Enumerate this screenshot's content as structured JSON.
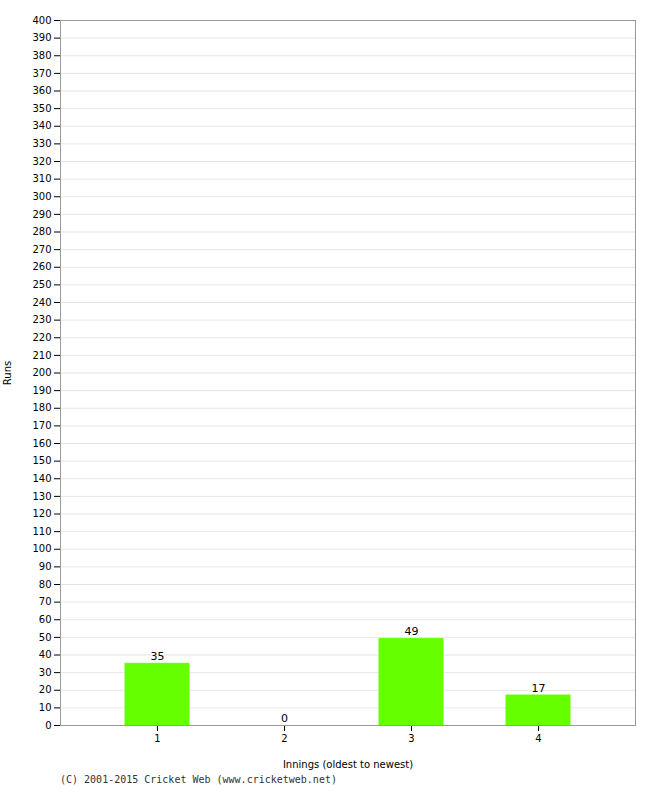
{
  "chart_data": {
    "type": "bar",
    "categories": [
      "1",
      "2",
      "3",
      "4"
    ],
    "values": [
      35,
      0,
      49,
      17
    ],
    "color": "#66ff00",
    "xlabel": "Innings (oldest to newest)",
    "ylabel": "Runs",
    "ylim": [
      0,
      400
    ],
    "yticks": [
      0,
      10,
      20,
      30,
      40,
      50,
      60,
      70,
      80,
      90,
      100,
      110,
      120,
      130,
      140,
      150,
      160,
      170,
      180,
      190,
      200,
      210,
      220,
      230,
      240,
      250,
      260,
      270,
      280,
      290,
      300,
      310,
      320,
      330,
      340,
      350,
      360,
      370,
      380,
      390,
      400
    ],
    "grid": true,
    "data_labels": true,
    "annotations": [
      "(C) 2001-2015 Cricket Web (www.cricketweb.net)"
    ]
  }
}
